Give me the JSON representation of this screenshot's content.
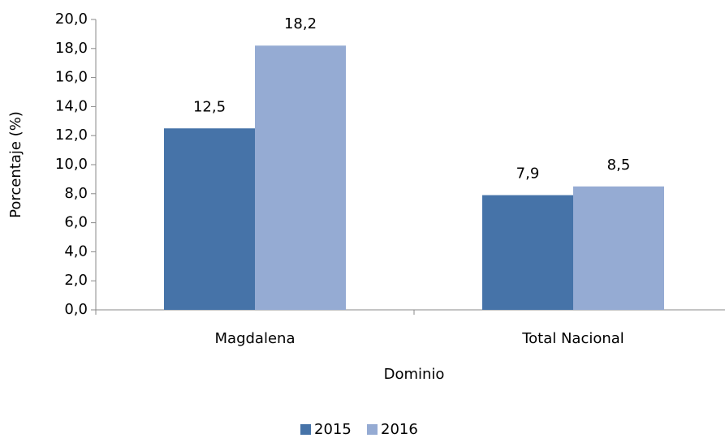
{
  "chart_data": {
    "type": "bar",
    "x_label": "Dominio",
    "y_label": "Porcentaje (%)",
    "categories": [
      "Magdalena",
      "Total Nacional"
    ],
    "series": [
      {
        "name": "2015",
        "color": "#4673a8",
        "values": [
          12.5,
          7.9
        ],
        "value_labels": [
          "12,5",
          "7,9"
        ]
      },
      {
        "name": "2016",
        "color": "#95abd3",
        "values": [
          18.2,
          8.5
        ],
        "value_labels": [
          "18,2",
          "8,5"
        ]
      }
    ],
    "ylim": [
      0,
      20
    ],
    "yticks": [
      {
        "value": 0,
        "label": "0,0"
      },
      {
        "value": 2,
        "label": "2,0"
      },
      {
        "value": 4,
        "label": "4,0"
      },
      {
        "value": 6,
        "label": "6,0"
      },
      {
        "value": 8,
        "label": "8,0"
      },
      {
        "value": 10,
        "label": "10,0"
      },
      {
        "value": 12,
        "label": "12,0"
      },
      {
        "value": 14,
        "label": "14,0"
      },
      {
        "value": 16,
        "label": "16,0"
      },
      {
        "value": 18,
        "label": "18,0"
      },
      {
        "value": 20,
        "label": "20,0"
      }
    ],
    "grid": false,
    "legend": "bottom"
  }
}
